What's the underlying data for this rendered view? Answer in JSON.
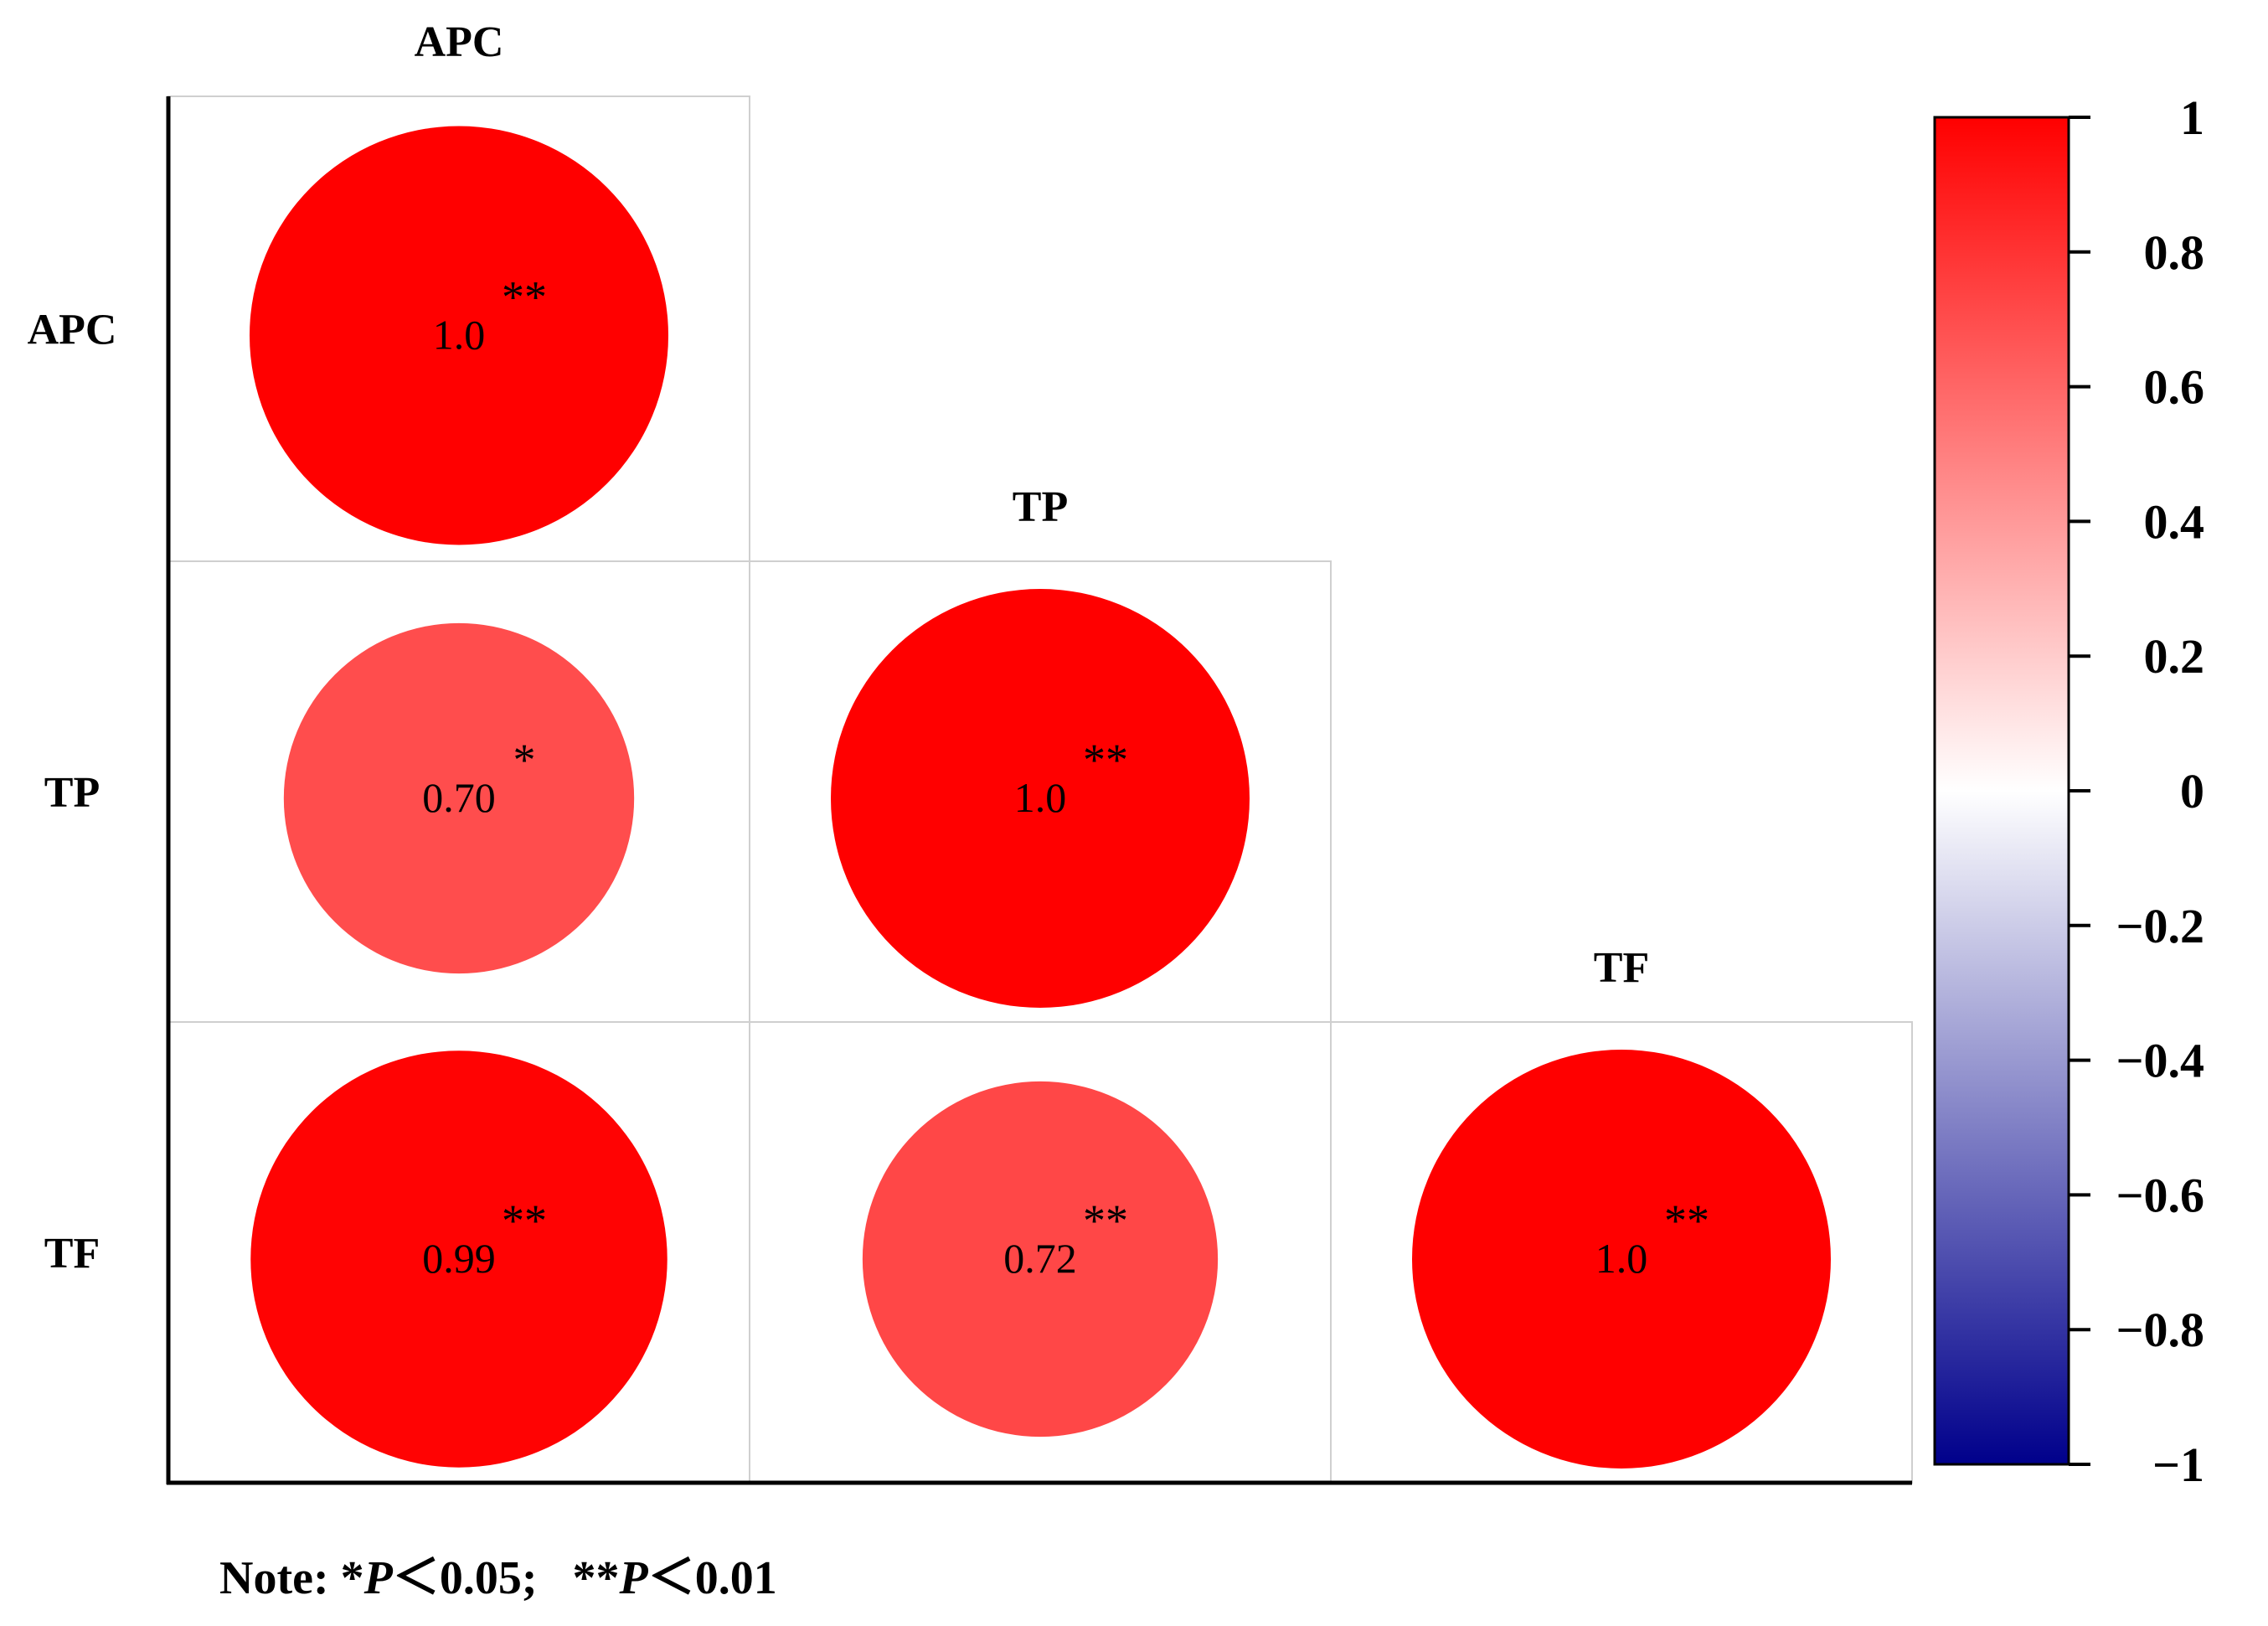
{
  "chart_data": {
    "type": "heatmap",
    "variables": [
      "APC",
      "TP",
      "TF"
    ],
    "cells": [
      {
        "row": "APC",
        "col": "APC",
        "value": 1.0,
        "label": "1.0",
        "sig": "**"
      },
      {
        "row": "TP",
        "col": "APC",
        "value": 0.7,
        "label": "0.70",
        "sig": "*"
      },
      {
        "row": "TP",
        "col": "TP",
        "value": 1.0,
        "label": "1.0",
        "sig": "**"
      },
      {
        "row": "TF",
        "col": "APC",
        "value": 0.99,
        "label": "0.99",
        "sig": "**"
      },
      {
        "row": "TF",
        "col": "TP",
        "value": 0.72,
        "label": "0.72",
        "sig": "**"
      },
      {
        "row": "TF",
        "col": "TF",
        "value": 1.0,
        "label": "1.0",
        "sig": "**"
      }
    ],
    "colorbar": {
      "range": [
        -1,
        1
      ],
      "ticks": [
        1,
        0.8,
        0.6,
        0.4,
        0.2,
        0,
        -0.2,
        -0.4,
        -0.6,
        -0.8,
        -1
      ],
      "tick_labels": [
        "1",
        "0.8",
        "0.6",
        "0.4",
        "0.2",
        "0",
        "−0.2",
        "−0.4",
        "−0.6",
        "−0.8",
        "−1"
      ],
      "colors": {
        "low": "#00008b",
        "mid": "#ffffff",
        "high": "#ff0000"
      }
    }
  },
  "note": {
    "prefix": "Note: *",
    "p1": "P",
    "mid": "＜0.05;   **",
    "p2": "P",
    "suffix": "＜0.01"
  }
}
